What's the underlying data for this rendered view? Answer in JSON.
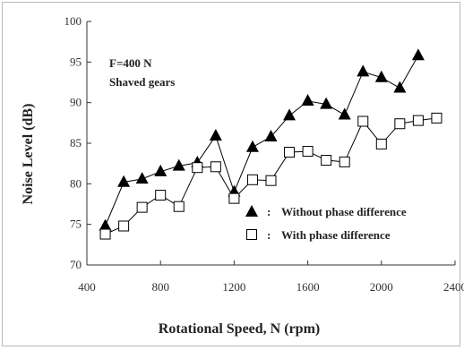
{
  "chart_data": {
    "type": "line",
    "xlabel": "Rotational Speed, N (rpm)",
    "ylabel": "Noise Level (dB)",
    "xlim": [
      400,
      2400
    ],
    "ylim": [
      70,
      100
    ],
    "x_ticks": [
      "400",
      "800",
      "1200",
      "1600",
      "2000",
      "2400"
    ],
    "y_ticks": [
      "70",
      "75",
      "80",
      "85",
      "90",
      "95",
      "100"
    ],
    "annotation_lines": [
      "F=400 N",
      "Shaved gears"
    ],
    "legend_position": "bottom-right",
    "grid": false,
    "series": [
      {
        "name": "Without phase difference",
        "marker": "filled-triangle",
        "color": "#000000",
        "x": [
          500,
          600,
          700,
          800,
          900,
          1000,
          1100,
          1200,
          1300,
          1400,
          1500,
          1600,
          1700,
          1800,
          1900,
          2000,
          2100,
          2200
        ],
        "y": [
          74.8,
          80.2,
          80.6,
          81.5,
          82.2,
          82.6,
          85.9,
          79.0,
          84.5,
          85.8,
          88.4,
          90.2,
          89.8,
          88.5,
          93.8,
          93.1,
          91.8,
          95.8
        ]
      },
      {
        "name": "With phase difference",
        "marker": "open-square",
        "color": "#000000",
        "x": [
          500,
          600,
          700,
          800,
          900,
          1000,
          1100,
          1200,
          1300,
          1400,
          1500,
          1600,
          1700,
          1800,
          1900,
          2000,
          2100,
          2200,
          2300
        ],
        "y": [
          73.8,
          74.8,
          77.1,
          78.6,
          77.2,
          82.0,
          82.1,
          78.2,
          80.5,
          80.4,
          83.9,
          84.0,
          82.9,
          82.7,
          87.7,
          84.9,
          87.4,
          87.8,
          88.1
        ]
      }
    ]
  },
  "legend_separator": ":"
}
